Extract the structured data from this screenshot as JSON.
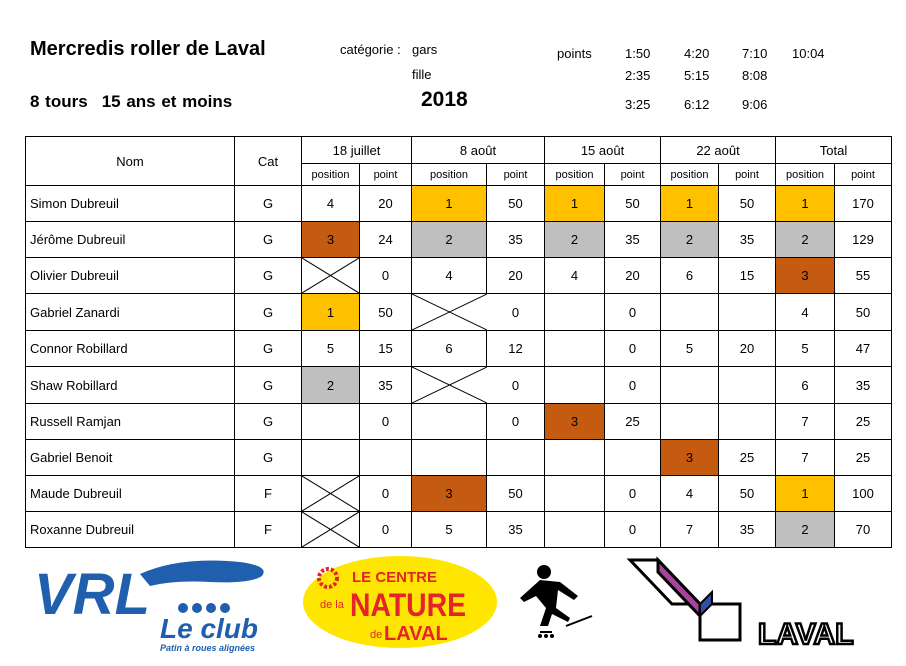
{
  "header": {
    "title": "Mercredis roller de Laval",
    "tours": "8 tours",
    "age": "15 ans et moins",
    "year": "2018",
    "categorie_label": "catégorie :",
    "cat_gars": "gars",
    "cat_fille": "fille",
    "points_label": "points",
    "times": [
      [
        "1:50",
        "4:20",
        "7:10",
        "10:04"
      ],
      [
        "2:35",
        "5:15",
        "8:08"
      ],
      [
        "3:25",
        "6:12",
        "9:06"
      ]
    ]
  },
  "table": {
    "col_nom": "Nom",
    "col_cat": "Cat",
    "dates": [
      "18 juillet",
      "8 août",
      "15 août",
      "22 août"
    ],
    "total_label": "Total",
    "sub_position": "position",
    "sub_point": "point",
    "rows": [
      {
        "name": "Simon Dubreuil",
        "cat": "G",
        "races": [
          [
            "4",
            "20"
          ],
          [
            "1",
            "50"
          ],
          [
            "1",
            "50"
          ],
          [
            "1",
            "50"
          ]
        ],
        "total": [
          "1",
          "170"
        ]
      },
      {
        "name": "Jérôme Dubreuil",
        "cat": "G",
        "races": [
          [
            "3",
            "24"
          ],
          [
            "2",
            "35"
          ],
          [
            "2",
            "35"
          ],
          [
            "2",
            "35"
          ]
        ],
        "total": [
          "2",
          "129"
        ]
      },
      {
        "name": "Olivier Dubreuil",
        "cat": "G",
        "races": [
          [
            "",
            "0"
          ],
          [
            "4",
            "20"
          ],
          [
            "4",
            "20"
          ],
          [
            "6",
            "15"
          ]
        ],
        "total": [
          "3",
          "55"
        ]
      },
      {
        "name": "Gabriel Zanardi",
        "cat": "G",
        "races": [
          [
            "1",
            "50"
          ],
          [
            "",
            "0"
          ],
          [
            "",
            "0"
          ],
          [
            "",
            ""
          ]
        ],
        "total": [
          "4",
          "50"
        ]
      },
      {
        "name": "Connor Robillard",
        "cat": "G",
        "races": [
          [
            "5",
            "15"
          ],
          [
            "6",
            "12"
          ],
          [
            "",
            "0"
          ],
          [
            "5",
            "20"
          ]
        ],
        "total": [
          "5",
          "47"
        ]
      },
      {
        "name": "Shaw Robillard",
        "cat": "G",
        "races": [
          [
            "2",
            "35"
          ],
          [
            "",
            "0"
          ],
          [
            "",
            "0"
          ],
          [
            "",
            ""
          ]
        ],
        "total": [
          "6",
          "35"
        ]
      },
      {
        "name": "Russell Ramjan",
        "cat": "G",
        "races": [
          [
            "",
            "0"
          ],
          [
            "",
            "0"
          ],
          [
            "3",
            "25"
          ],
          [
            "",
            ""
          ]
        ],
        "total": [
          "7",
          "25"
        ]
      },
      {
        "name": "Gabriel Benoit",
        "cat": "G",
        "races": [
          [
            "",
            ""
          ],
          [
            "",
            ""
          ],
          [
            "",
            ""
          ],
          [
            "3",
            "25"
          ]
        ],
        "total": [
          "7",
          "25"
        ]
      },
      {
        "name": "Maude Dubreuil",
        "cat": "F",
        "races": [
          [
            "",
            "0"
          ],
          [
            "3",
            "50"
          ],
          [
            "",
            "0"
          ],
          [
            "4",
            "50"
          ]
        ],
        "total": [
          "1",
          "100"
        ]
      },
      {
        "name": "Roxanne Dubreuil",
        "cat": "F",
        "races": [
          [
            "",
            "0"
          ],
          [
            "5",
            "35"
          ],
          [
            "",
            "0"
          ],
          [
            "7",
            "35"
          ]
        ],
        "total": [
          "2",
          "70"
        ]
      }
    ]
  },
  "medal_colors": {
    "gold": "#ffc000",
    "silver": "#bfbfbf",
    "bronze": "#c55a11"
  },
  "logos": {
    "vrl": "VRL",
    "vrl_club": "Le club",
    "vrl_tagline": "Patin à roues alignées",
    "nature_line1": "LE CENTRE",
    "nature_dela": "de la",
    "nature_big": "NATURE",
    "nature_de": "de",
    "nature_laval": "LAVAL",
    "laval": "LAVAL",
    "vrl_color": "#1f5fae",
    "nature_yellow": "#ffe600",
    "nature_red": "#e3242b",
    "laval_magenta": "#a9439d",
    "laval_blue": "#2f4fa2"
  }
}
